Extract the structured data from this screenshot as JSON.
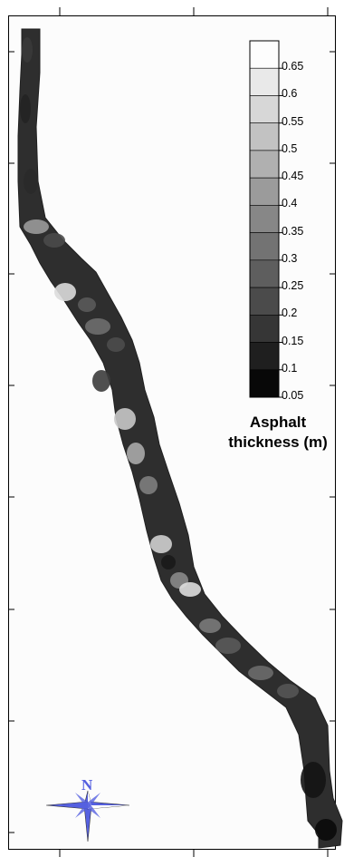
{
  "legend": {
    "title_line1": "Asphalt",
    "title_line2": "thickness (m)",
    "levels": [
      "0.65",
      "0.6",
      "0.55",
      "0.5",
      "0.45",
      "0.4",
      "0.35",
      "0.3",
      "0.25",
      "0.2",
      "0.15",
      "0.1",
      "0.05"
    ],
    "colors": [
      "#fdfdfd",
      "#e9e9e9",
      "#d7d7d7",
      "#c2c2c2",
      "#b0b0b0",
      "#9b9b9b",
      "#878787",
      "#737373",
      "#5e5e5e",
      "#4b4b4b",
      "#363636",
      "#1f1f1f",
      "#080808"
    ]
  },
  "compass": {
    "north_label": "N",
    "color": "#5560e0"
  },
  "map": {
    "background_color": "#fcfcfc",
    "road_base_color": "#2e2e2e",
    "highlight_color": "#e8e8e8"
  }
}
